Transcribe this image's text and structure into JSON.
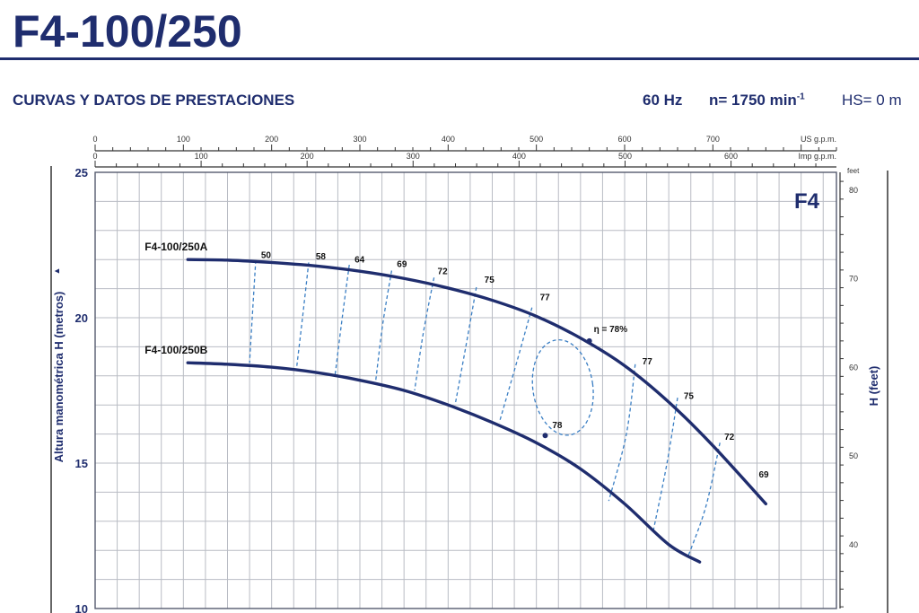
{
  "header": {
    "title": "F4-100/250",
    "subtitle": "CURVAS Y DATOS DE PRESTACIONES",
    "frequency": "60 Hz",
    "speed_label": "n= 1750 min",
    "speed_exp": "-1",
    "hs": "HS= 0 m"
  },
  "colors": {
    "primary": "#1f2d6e",
    "grid": "#b9bcc4",
    "eff": "#3b7fc4"
  },
  "chart_data": {
    "type": "line",
    "badge": "F4",
    "ylabel": "Altura manométrica H (metros)",
    "ylabel_arrow": "▲",
    "y2label": "H (feet)",
    "y2unit": "feet",
    "top_axis_label": "US g.p.m.",
    "second_axis_label": "Imp g.p.m.",
    "ylim": [
      10,
      25
    ],
    "y_ticks": [
      "10",
      "15",
      "20",
      "25"
    ],
    "y2_ticks": [
      "40",
      "50",
      "60",
      "70",
      "80"
    ],
    "us_gpm_ticks": [
      "0",
      "100",
      "200",
      "300",
      "400",
      "500",
      "600",
      "700"
    ],
    "imp_gpm_ticks": [
      "0",
      "100",
      "200",
      "300",
      "400",
      "500",
      "600"
    ],
    "series": [
      {
        "name": "F4-100/250A",
        "x": [
          105,
          150,
          200,
          250,
          300,
          350,
          400,
          450,
          500,
          550,
          600,
          650,
          700,
          760
        ],
        "y": [
          22.0,
          21.98,
          21.9,
          21.78,
          21.6,
          21.35,
          21.02,
          20.6,
          20.05,
          19.3,
          18.35,
          17.1,
          15.6,
          13.6
        ]
      },
      {
        "name": "F4-100/250B",
        "x": [
          105,
          150,
          200,
          250,
          300,
          350,
          400,
          450,
          500,
          550,
          600,
          650,
          685
        ],
        "y": [
          18.45,
          18.4,
          18.3,
          18.12,
          17.85,
          17.5,
          17.0,
          16.4,
          15.7,
          14.8,
          13.6,
          12.2,
          11.6
        ]
      }
    ],
    "efficiency_labels": [
      {
        "label": "50",
        "x": 188,
        "y": 22.05
      },
      {
        "label": "58",
        "x": 250,
        "y": 22.0
      },
      {
        "label": "64",
        "x": 294,
        "y": 21.9
      },
      {
        "label": "69",
        "x": 342,
        "y": 21.75
      },
      {
        "label": "72",
        "x": 388,
        "y": 21.5
      },
      {
        "label": "75",
        "x": 441,
        "y": 21.2
      },
      {
        "label": "77",
        "x": 504,
        "y": 20.6
      },
      {
        "label": "η = 78%",
        "x": 565,
        "y": 19.5
      },
      {
        "label": "77",
        "x": 620,
        "y": 18.4
      },
      {
        "label": "75",
        "x": 667,
        "y": 17.2
      },
      {
        "label": "72",
        "x": 713,
        "y": 15.8
      },
      {
        "label": "69",
        "x": 752,
        "y": 14.5
      },
      {
        "label": "78",
        "x": 518,
        "y": 16.2
      }
    ],
    "efficiency_lines": [
      {
        "x": [
          182,
          178,
          175
        ],
        "y": [
          21.98,
          20.0,
          18.45
        ]
      },
      {
        "x": [
          242,
          235,
          228
        ],
        "y": [
          21.9,
          20.0,
          18.2
        ]
      },
      {
        "x": [
          288,
          280,
          272
        ],
        "y": [
          21.82,
          20.0,
          18.05
        ]
      },
      {
        "x": [
          336,
          326,
          318
        ],
        "y": [
          21.62,
          19.8,
          17.85
        ]
      },
      {
        "x": [
          384,
          372,
          362
        ],
        "y": [
          21.38,
          19.5,
          17.5
        ]
      },
      {
        "x": [
          432,
          420,
          408
        ],
        "y": [
          21.05,
          19.0,
          17.02
        ]
      },
      {
        "x": [
          495,
          478,
          458
        ],
        "y": [
          20.35,
          18.5,
          16.4
        ]
      },
      {
        "x": [
          612,
          602,
          582
        ],
        "y": [
          18.4,
          16.0,
          13.7
        ]
      },
      {
        "x": [
          660,
          648,
          632
        ],
        "y": [
          17.25,
          15.0,
          12.6
        ]
      },
      {
        "x": [
          708,
          692,
          672
        ],
        "y": [
          15.7,
          13.5,
          11.8
        ]
      }
    ],
    "efficiency_ellipse": {
      "cx": 530,
      "cy": 17.6,
      "rx": 34,
      "ry": 1.65
    },
    "bep_points": [
      {
        "x": 560,
        "y": 19.2
      },
      {
        "x": 510,
        "y": 15.95
      }
    ]
  }
}
